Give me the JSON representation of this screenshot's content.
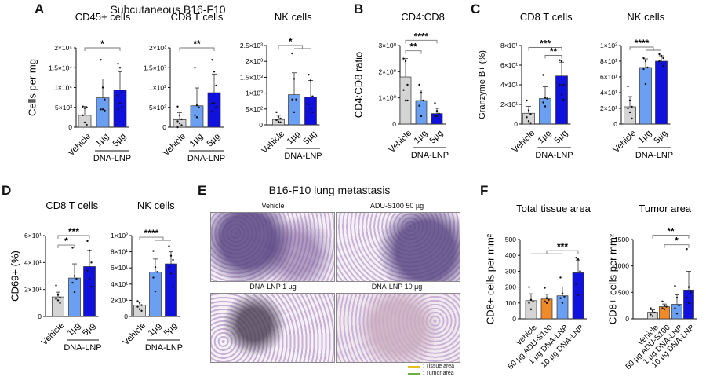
{
  "panels": {
    "A": {
      "letter": "A",
      "title": "Subcutaneous B16-F10"
    },
    "B": {
      "letter": "B"
    },
    "C": {
      "letter": "C"
    },
    "D": {
      "letter": "D"
    },
    "E": {
      "letter": "E",
      "title": "B16-F10 lung metastasis",
      "images": [
        "Vehicle",
        "ADU-S100 50 µg",
        "DNA-LNP 1 µg",
        "DNA-LNP 10 µg"
      ],
      "legend": [
        {
          "label": ": Tissue area",
          "color": "#e8c020"
        },
        {
          "label": ": Tumor area",
          "color": "#70b040"
        }
      ]
    },
    "F": {
      "letter": "F"
    }
  },
  "colors": {
    "vehicle": "#d4d4d4",
    "dna_low": "#6b9ff2",
    "dna_high": "#1111dd",
    "adu": "#ef8a2a"
  },
  "chart_data": [
    {
      "id": "A1",
      "type": "bar",
      "title": "CD45+ cells",
      "ylabel": "Cells per mg",
      "ylim": [
        0,
        20000
      ],
      "ticks": [
        0,
        5000,
        10000,
        15000,
        20000
      ],
      "tick_labels": [
        "0",
        "5×10³",
        "1×10⁴",
        "1.5×10⁴",
        "2×10⁴"
      ],
      "categories": [
        "Vehicle",
        "1µg",
        "5µg"
      ],
      "group_label": "DNA-LNP",
      "values": [
        3000,
        7400,
        9400
      ],
      "error_upper": [
        5200,
        12200,
        14000
      ],
      "points": [
        [
          5200,
          4800,
          5000,
          3000,
          1200,
          600
        ],
        [
          17000,
          10000,
          7000,
          4500,
          4500,
          4200
        ],
        [
          16000,
          15000,
          9000,
          8000,
          6000,
          5000,
          4500
        ]
      ],
      "colors": [
        "vehicle",
        "dna_low",
        "dna_high"
      ],
      "significance": [
        {
          "from": 0,
          "to": [
            2
          ],
          "label": "*",
          "level": 20000
        }
      ]
    },
    {
      "id": "A2",
      "type": "bar",
      "title": "CD8 T cells",
      "ylabel": "",
      "ylim": [
        0,
        2000
      ],
      "ticks": [
        0,
        500,
        1000,
        1500,
        2000
      ],
      "tick_labels": [
        "0",
        "5×10²",
        "1×10³",
        "1.5×10³",
        "2×10³"
      ],
      "categories": [
        "Vehicle",
        "1µg",
        "5µg"
      ],
      "group_label": "DNA-LNP",
      "values": [
        190,
        540,
        870
      ],
      "error_upper": [
        370,
        990,
        1340
      ],
      "points": [
        [
          520,
          300,
          200,
          150,
          100,
          50,
          0
        ],
        [
          1500,
          550,
          500,
          300,
          250
        ],
        [
          1700,
          1400,
          1050,
          600,
          600,
          500,
          400
        ]
      ],
      "colors": [
        "vehicle",
        "dna_low",
        "dna_high"
      ],
      "significance": [
        {
          "from": 0,
          "to": [
            2
          ],
          "label": "**",
          "level": 2000
        }
      ]
    },
    {
      "id": "A3",
      "type": "bar",
      "title": "NK cells",
      "ylabel": "",
      "ylim": [
        0,
        2500
      ],
      "ticks": [
        0,
        500,
        1000,
        1500,
        2000,
        2500
      ],
      "tick_labels": [
        "0",
        "5×10²",
        "1×10³",
        "1.5×10³",
        "2×10³",
        "2.5×10³"
      ],
      "categories": [
        "Vehicle",
        "1µg",
        "5µg"
      ],
      "group_label": "DNA-LNP",
      "values": [
        170,
        950,
        870
      ],
      "error_upper": [
        300,
        1640,
        1400
      ],
      "points": [
        [
          400,
          250,
          200,
          150,
          100,
          80
        ],
        [
          2250,
          1450,
          800,
          800,
          400
        ],
        [
          1580,
          1400,
          900,
          650,
          500,
          400
        ]
      ],
      "colors": [
        "vehicle",
        "dna_low",
        "dna_high"
      ],
      "significance": [
        {
          "from": 0,
          "to": [
            1,
            2
          ],
          "label": "*",
          "level": 2500
        }
      ]
    },
    {
      "id": "B",
      "type": "bar",
      "title": "CD4:CD8",
      "ylabel": "CD4:CD8 ratio",
      "ylim": [
        0,
        3
      ],
      "ticks": [
        0,
        1,
        2,
        3
      ],
      "tick_labels": [
        "0",
        "1×10⁰",
        "2×10⁰",
        "3×10⁰"
      ],
      "categories": [
        "Vehicle",
        "1µg",
        "5µg"
      ],
      "group_label": "DNA-LNP",
      "values": [
        1.8,
        0.9,
        0.4
      ],
      "error_upper": [
        2.5,
        1.3,
        0.6
      ],
      "points": [
        [
          2.5,
          2.4,
          1.5,
          1.3,
          0.9,
          0.9
        ],
        [
          1.5,
          1.2,
          0.9,
          0.7,
          0.3
        ],
        [
          0.8,
          0.5,
          0.4,
          0.3,
          0.3,
          0.2
        ]
      ],
      "colors": [
        "vehicle",
        "dna_low",
        "dna_high"
      ],
      "significance": [
        {
          "from": 0,
          "to": [
            2
          ],
          "label": "****",
          "level": 3.2
        },
        {
          "from": 0,
          "to": [
            1
          ],
          "label": "**",
          "level": 2.8
        }
      ]
    },
    {
      "id": "C1",
      "type": "bar",
      "title": "CD8 T cells",
      "ylabel": "Granzyme B+ (%)",
      "ylim": [
        0,
        80
      ],
      "ticks": [
        0,
        20,
        40,
        60,
        80
      ],
      "tick_labels": [
        "0",
        "2×10¹",
        "4×10¹",
        "6×10¹",
        "8×10¹"
      ],
      "categories": [
        "Vehicle",
        "1µg",
        "5µg"
      ],
      "group_label": "DNA-LNP",
      "values": [
        11,
        26,
        49
      ],
      "error_upper": [
        18,
        38,
        63
      ],
      "points": [
        [
          24,
          14,
          10,
          7,
          3,
          1
        ],
        [
          50,
          27,
          26,
          22,
          18
        ],
        [
          65,
          64,
          40,
          40,
          30,
          25
        ]
      ],
      "colors": [
        "vehicle",
        "dna_low",
        "dna_high"
      ],
      "significance": [
        {
          "from": 0,
          "to": [
            2
          ],
          "label": "***",
          "level": 78
        },
        {
          "from": 1,
          "to": [
            2
          ],
          "label": "**",
          "level": 70
        }
      ]
    },
    {
      "id": "C2",
      "type": "bar",
      "title": "NK cells",
      "ylabel": "",
      "ylim": [
        0,
        100
      ],
      "ticks": [
        0,
        20,
        40,
        60,
        80,
        100
      ],
      "tick_labels": [
        "0",
        "2×10¹",
        "4×10¹",
        "6×10¹",
        "8×10¹",
        "1×10²"
      ],
      "categories": [
        "Vehicle",
        "1µg",
        "5µg"
      ],
      "group_label": "DNA-LNP",
      "values": [
        22,
        72,
        80
      ],
      "error_upper": [
        35,
        83,
        87
      ],
      "points": [
        [
          48,
          30,
          22,
          20,
          15,
          7
        ],
        [
          84,
          80,
          72,
          70,
          51
        ],
        [
          89,
          87,
          84,
          80,
          77,
          74
        ]
      ],
      "colors": [
        "vehicle",
        "dna_low",
        "dna_high"
      ],
      "significance": [
        {
          "from": 0,
          "to": [
            1,
            2
          ],
          "label": "****",
          "level": 98
        }
      ]
    },
    {
      "id": "D1",
      "type": "bar",
      "title": "CD8 T cells",
      "ylabel": "CD69+ (%)",
      "ylim": [
        0,
        60
      ],
      "ticks": [
        0,
        20,
        40,
        60
      ],
      "tick_labels": [
        "0",
        "2×10¹",
        "4×10¹",
        "6×10¹"
      ],
      "categories": [
        "Vehicle",
        "1µg",
        "5µg"
      ],
      "group_label": "DNA-LNP",
      "values": [
        14.5,
        28.5,
        37
      ],
      "error_upper": [
        18,
        39,
        49
      ],
      "points": [
        [
          23,
          16,
          14,
          13,
          12,
          10
        ],
        [
          51,
          30,
          28,
          25,
          18
        ],
        [
          56,
          49,
          40,
          34,
          28,
          22
        ]
      ],
      "colors": [
        "vehicle",
        "dna_low",
        "dna_high"
      ],
      "significance": [
        {
          "from": 0,
          "to": [
            2
          ],
          "label": "***",
          "level": 60
        },
        {
          "from": 0,
          "to": [
            1
          ],
          "label": "*",
          "level": 53
        }
      ]
    },
    {
      "id": "D2",
      "type": "bar",
      "title": "NK cells",
      "ylabel": "",
      "ylim": [
        0,
        100
      ],
      "ticks": [
        0,
        20,
        40,
        60,
        80,
        100
      ],
      "tick_labels": [
        "0",
        "2×10¹",
        "4×10¹",
        "6×10¹",
        "8×10¹",
        "1×10²"
      ],
      "categories": [
        "Vehicle",
        "1µg",
        "5µg"
      ],
      "group_label": "DNA-LNP",
      "values": [
        14,
        55,
        65
      ],
      "error_upper": [
        18,
        71,
        80
      ],
      "points": [
        [
          19,
          17,
          14,
          12,
          9,
          7
        ],
        [
          81,
          61,
          55,
          48,
          31
        ],
        [
          87,
          75,
          70,
          61,
          53,
          37
        ]
      ],
      "colors": [
        "vehicle",
        "dna_low",
        "dna_high"
      ],
      "significance": [
        {
          "from": 0,
          "to": [
            1,
            2
          ],
          "label": "****",
          "level": 98
        }
      ]
    },
    {
      "id": "F1",
      "type": "bar",
      "title": "Total tissue area",
      "ylabel": "CD8+ cells per mm²",
      "ylim": [
        0,
        500
      ],
      "ticks": [
        0,
        100,
        200,
        300,
        400,
        500
      ],
      "tick_labels": [
        "0",
        "100",
        "200",
        "300",
        "400",
        "500"
      ],
      "categories": [
        "Vehicle",
        "50 µg ADU-S100",
        "1 µg DNA-LNP",
        "10 µg DNA-LNP"
      ],
      "group_label": "",
      "values": [
        115,
        125,
        145,
        290
      ],
      "error_upper": [
        158,
        155,
        200,
        370
      ],
      "points": [
        [
          200,
          120,
          110,
          100,
          60
        ],
        [
          195,
          130,
          120,
          110,
          100
        ],
        [
          260,
          160,
          140,
          130,
          100
        ],
        [
          385,
          375,
          300,
          220,
          150
        ]
      ],
      "colors": [
        "vehicle",
        "adu",
        "dna_low",
        "dna_high"
      ],
      "significance": [
        {
          "from": 3,
          "to": [
            0,
            1,
            2
          ],
          "label": "***",
          "level": 430
        }
      ]
    },
    {
      "id": "F2",
      "type": "bar",
      "title": "Tumor area",
      "ylabel": "CD8+ cells per mm²",
      "ylim": [
        0,
        1500
      ],
      "ticks": [
        0,
        500,
        1000,
        1500
      ],
      "tick_labels": [
        "0",
        "500",
        "1000",
        "1500"
      ],
      "categories": [
        "Vehicle",
        "50 µg ADU-S100",
        "1 µg DNA-LNP",
        "10 µg DNA-LNP"
      ],
      "group_label": "",
      "values": [
        125,
        230,
        275,
        545
      ],
      "error_upper": [
        170,
        280,
        455,
        900
      ],
      "points": [
        [
          200,
          150,
          120,
          80,
          50
        ],
        [
          330,
          250,
          230,
          200,
          180
        ],
        [
          620,
          400,
          250,
          200,
          100
        ],
        [
          1320,
          600,
          500,
          400,
          300
        ]
      ],
      "colors": [
        "vehicle",
        "adu",
        "dna_low",
        "dna_high"
      ],
      "significance": [
        {
          "from": 0,
          "to": [
            3
          ],
          "label": "**",
          "level": 1580
        },
        {
          "from": 1,
          "to": [
            3
          ],
          "label": "*",
          "level": 1400
        }
      ]
    }
  ]
}
